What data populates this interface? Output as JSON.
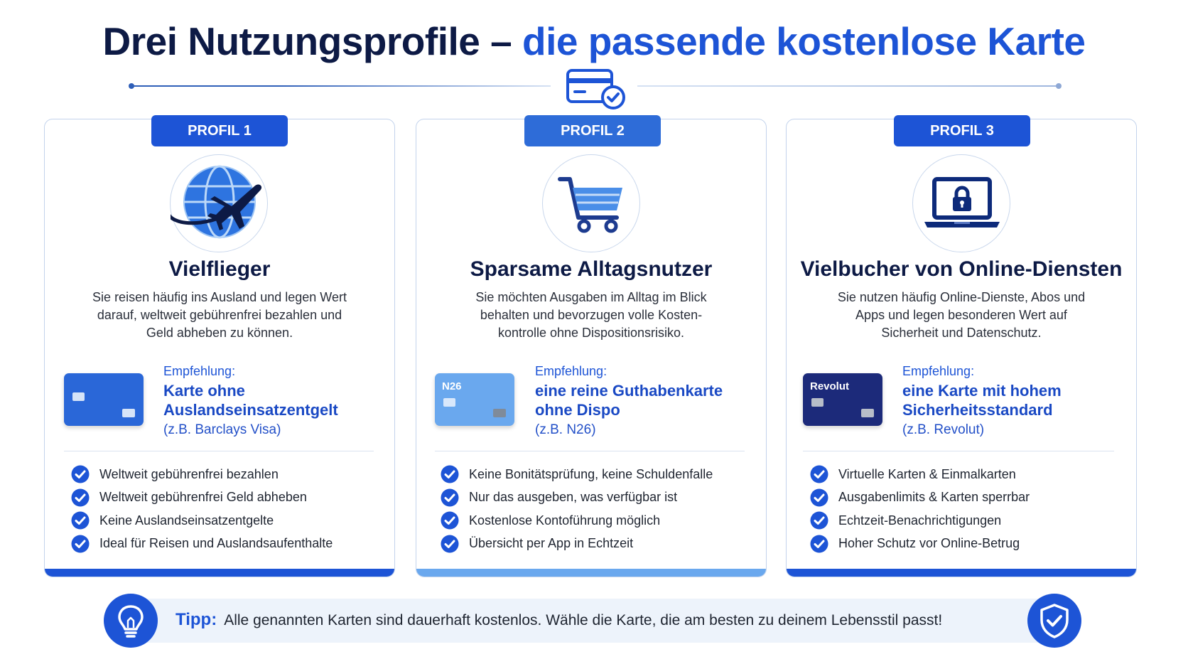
{
  "title": {
    "part1": "Drei Nutzungsprofile – ",
    "part2": "die passende kostenlose Karte"
  },
  "colors": {
    "dark_navy": "#0d1a45",
    "accent_blue": "#1d54d6",
    "light_blue": "#6aa8ee",
    "navy_card": "#1c2a7a"
  },
  "top_icon": "card-check-icon",
  "profiles": [
    {
      "badge": "PROFIL 1",
      "icon": "globe-airplane-icon",
      "title": "Vielflieger",
      "description": "Sie reisen häufig ins Ausland und legen Wert darauf, weltweit gebührenfrei bezahlen und Geld abheben zu können.",
      "recommendation_label": "Empfehlung:",
      "recommendation": "Karte ohne Auslandseinsatzentgelt",
      "example": "(z.B. Barclays Visa)",
      "card_brand": "",
      "features": [
        "Weltweit gebührenfrei bezahlen",
        "Weltweit gebührenfrei Geld abheben",
        "Keine Auslandseinsatzentgelte",
        "Ideal für Reisen und Auslandsaufenthalte"
      ]
    },
    {
      "badge": "PROFIL 2",
      "icon": "shopping-cart-icon",
      "title": "Sparsame Alltagsnutzer",
      "description": "Sie möchten Ausgaben im Alltag im Blick behalten und bevorzugen volle Kosten-kontrolle ohne Dispositionsrisiko.",
      "recommendation_label": "Empfehlung:",
      "recommendation": "eine reine Guthabenkarte ohne Dispo",
      "example": "(z.B. N26)",
      "card_brand": "N26",
      "features": [
        "Keine Bonitätsprüfung, keine Schuldenfalle",
        "Nur das ausgeben, was verfügbar ist",
        "Kostenlose Kontoführung möglich",
        "Übersicht per App in Echtzeit"
      ]
    },
    {
      "badge": "PROFIL 3",
      "icon": "laptop-lock-icon",
      "title": "Vielbucher von Online-Diensten",
      "description": "Sie nutzen häufig Online-Dienste, Abos und Apps und legen besonderen Wert auf Sicherheit und Datenschutz.",
      "recommendation_label": "Empfehlung:",
      "recommendation": "eine Karte mit hohem Sicherheitsstandard",
      "example": "(z.B. Revolut)",
      "card_brand": "Revolut",
      "features": [
        "Virtuelle Karten & Einmalkarten",
        "Ausgabenlimits & Karten sperrbar",
        "Echtzeit-Benachrichtigungen",
        "Hoher Schutz vor Online-Betrug"
      ]
    }
  ],
  "tip": {
    "label": "Tipp:",
    "text": "Alle genannten Karten sind dauerhaft kostenlos. Wähle die Karte, die am besten zu deinem Lebensstil passt!",
    "left_icon": "lightbulb-icon",
    "right_icon": "shield-check-icon"
  }
}
